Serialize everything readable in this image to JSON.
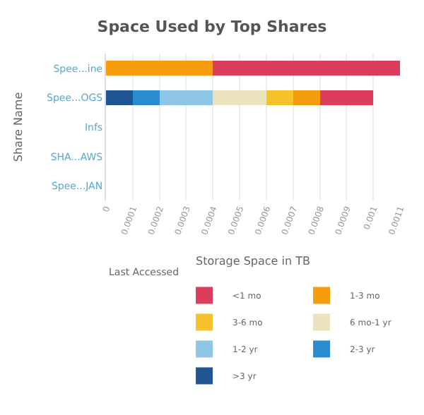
{
  "chart_data": {
    "type": "bar",
    "orientation": "horizontal",
    "stacked": true,
    "title": "Space Used by Top Shares",
    "xlabel": "Storage Space in TB",
    "ylabel": "Share Name",
    "legend_title": "Last Accessed",
    "legend": "bottom",
    "grid": "x",
    "categories": [
      "Spee...ine",
      "Spee...OGS",
      "Infs",
      "SHA...AWS",
      "Spee...JAN"
    ],
    "xlim": [
      0,
      0.0011
    ],
    "xticks": [
      0,
      0.0001,
      0.0002,
      0.0003,
      0.0004,
      0.0005,
      0.0006,
      0.0007,
      0.0008,
      0.0009,
      0.001,
      0.0011
    ],
    "series": [
      {
        "name": ">3 yr",
        "color": "#1f5591",
        "values": [
          null,
          0.0001,
          null,
          null,
          null
        ]
      },
      {
        "name": "2-3 yr",
        "color": "#2a8ccf",
        "values": [
          null,
          0.0001,
          null,
          null,
          null
        ]
      },
      {
        "name": "1-2 yr",
        "color": "#8ec6e8",
        "values": [
          null,
          0.0002,
          null,
          null,
          null
        ]
      },
      {
        "name": "6 mo-1 yr",
        "color": "#ebe3bd",
        "values": [
          null,
          0.0002,
          null,
          null,
          null
        ]
      },
      {
        "name": "3-6 mo",
        "color": "#f6c22c",
        "values": [
          null,
          0.0001,
          null,
          null,
          null
        ]
      },
      {
        "name": "1-3 mo",
        "color": "#f59d0c",
        "values": [
          0.0004,
          0.0001,
          null,
          null,
          null
        ]
      },
      {
        "name": "<1 mo",
        "color": "#dc3d5c",
        "values": [
          0.0007,
          0.0002,
          null,
          null,
          null
        ]
      }
    ]
  }
}
